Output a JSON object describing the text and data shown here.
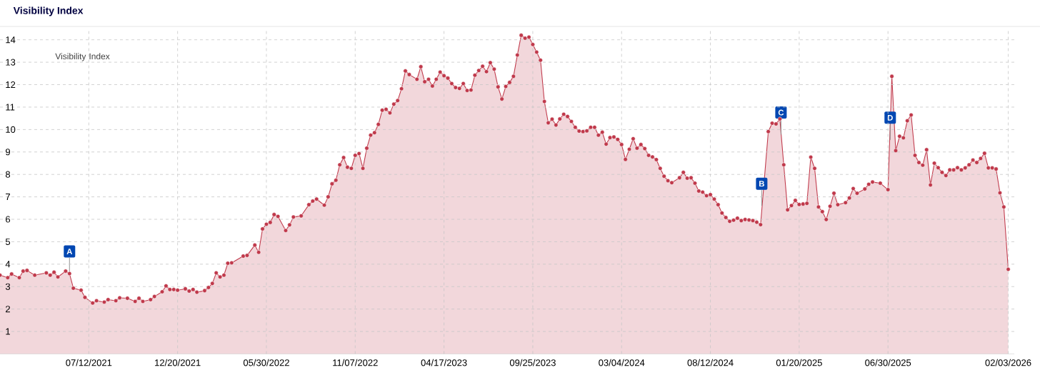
{
  "chart_data": {
    "type": "area",
    "title": "Visibility Index",
    "legend_title": "Visibility Index",
    "grid": true,
    "marker": "circle",
    "xlim": [
      "2021-02-01",
      "2026-02-14"
    ],
    "xticks": [
      {
        "value": "2021-07-12",
        "label": "07/12/2021"
      },
      {
        "value": "2021-12-20",
        "label": "12/20/2021"
      },
      {
        "value": "2022-05-30",
        "label": "05/30/2022"
      },
      {
        "value": "2022-11-07",
        "label": "11/07/2022"
      },
      {
        "value": "2023-04-17",
        "label": "04/17/2023"
      },
      {
        "value": "2023-09-25",
        "label": "09/25/2023"
      },
      {
        "value": "2024-03-04",
        "label": "03/04/2024"
      },
      {
        "value": "2024-08-12",
        "label": "08/12/2024"
      },
      {
        "value": "2025-01-20",
        "label": "01/20/2025"
      },
      {
        "value": "2025-06-30",
        "label": "06/30/2025"
      },
      {
        "value": "2026-02-03",
        "label": "02/03/2026"
      }
    ],
    "ylim": [
      0,
      14.5
    ],
    "yticks": [
      1,
      2,
      3,
      4,
      5,
      6,
      7,
      8,
      9,
      10,
      11,
      12,
      13,
      14
    ],
    "annotations": [
      {
        "text": "A",
        "x": "2021-06-07",
        "y": 3.58
      },
      {
        "text": "B",
        "x": "2024-11-13",
        "y": 6.6
      },
      {
        "text": "C",
        "x": "2024-12-18",
        "y": 9.77
      },
      {
        "text": "D",
        "x": "2025-07-04",
        "y": 9.54
      }
    ],
    "series": [
      {
        "color": "#c0394b",
        "x": [
          "2021-02-01",
          "2021-02-15",
          "2021-02-22",
          "2021-03-08",
          "2021-03-15",
          "2021-03-22",
          "2021-04-05",
          "2021-04-26",
          "2021-05-03",
          "2021-05-10",
          "2021-05-17",
          "2021-05-31",
          "2021-06-07",
          "2021-06-14",
          "2021-06-28",
          "2021-07-05",
          "2021-07-19",
          "2021-07-26",
          "2021-08-09",
          "2021-08-16",
          "2021-08-30",
          "2021-09-06",
          "2021-09-20",
          "2021-10-04",
          "2021-10-11",
          "2021-10-18",
          "2021-11-01",
          "2021-11-08",
          "2021-11-22",
          "2021-11-29",
          "2021-12-06",
          "2021-12-13",
          "2021-12-20",
          "2022-01-03",
          "2022-01-10",
          "2022-01-17",
          "2022-01-24",
          "2022-02-07",
          "2022-02-14",
          "2022-02-21",
          "2022-02-28",
          "2022-03-07",
          "2022-03-14",
          "2022-03-21",
          "2022-03-28",
          "2022-04-18",
          "2022-04-25",
          "2022-05-09",
          "2022-05-16",
          "2022-05-23",
          "2022-05-30",
          "2022-06-06",
          "2022-06-13",
          "2022-06-20",
          "2022-07-04",
          "2022-07-11",
          "2022-07-18",
          "2022-08-01",
          "2022-08-15",
          "2022-08-22",
          "2022-08-29",
          "2022-09-12",
          "2022-09-19",
          "2022-09-26",
          "2022-10-03",
          "2022-10-10",
          "2022-10-17",
          "2022-10-24",
          "2022-10-31",
          "2022-11-07",
          "2022-11-14",
          "2022-11-21",
          "2022-11-28",
          "2022-12-05",
          "2022-12-12",
          "2022-12-19",
          "2022-12-26",
          "2023-01-02",
          "2023-01-09",
          "2023-01-16",
          "2023-01-23",
          "2023-01-30",
          "2023-02-06",
          "2023-02-13",
          "2023-02-27",
          "2023-03-06",
          "2023-03-13",
          "2023-03-20",
          "2023-03-27",
          "2023-04-03",
          "2023-04-10",
          "2023-04-17",
          "2023-04-24",
          "2023-05-01",
          "2023-05-08",
          "2023-05-15",
          "2023-05-22",
          "2023-05-29",
          "2023-06-05",
          "2023-06-12",
          "2023-06-19",
          "2023-06-26",
          "2023-07-03",
          "2023-07-10",
          "2023-07-17",
          "2023-07-24",
          "2023-07-31",
          "2023-08-07",
          "2023-08-14",
          "2023-08-21",
          "2023-08-28",
          "2023-09-04",
          "2023-09-11",
          "2023-09-18",
          "2023-09-25",
          "2023-10-02",
          "2023-10-09",
          "2023-10-16",
          "2023-10-23",
          "2023-10-30",
          "2023-11-06",
          "2023-11-13",
          "2023-11-20",
          "2023-11-27",
          "2023-12-04",
          "2023-12-11",
          "2023-12-18",
          "2023-12-25",
          "2024-01-01",
          "2024-01-08",
          "2024-01-15",
          "2024-01-22",
          "2024-01-29",
          "2024-02-05",
          "2024-02-12",
          "2024-02-19",
          "2024-02-26",
          "2024-03-04",
          "2024-03-11",
          "2024-03-18",
          "2024-03-25",
          "2024-04-01",
          "2024-04-08",
          "2024-04-15",
          "2024-04-22",
          "2024-04-29",
          "2024-05-06",
          "2024-05-13",
          "2024-05-20",
          "2024-05-27",
          "2024-06-03",
          "2024-06-17",
          "2024-06-24",
          "2024-07-01",
          "2024-07-08",
          "2024-07-15",
          "2024-07-22",
          "2024-07-29",
          "2024-08-05",
          "2024-08-12",
          "2024-08-19",
          "2024-08-26",
          "2024-09-02",
          "2024-09-09",
          "2024-09-16",
          "2024-09-23",
          "2024-09-30",
          "2024-10-07",
          "2024-10-14",
          "2024-10-21",
          "2024-10-28",
          "2024-11-04",
          "2024-11-11",
          "2024-11-18",
          "2024-11-25",
          "2024-12-02",
          "2024-12-09",
          "2024-12-16",
          "2024-12-23",
          "2024-12-30",
          "2025-01-06",
          "2025-01-13",
          "2025-01-20",
          "2025-01-27",
          "2025-02-03",
          "2025-02-10",
          "2025-02-17",
          "2025-02-24",
          "2025-03-03",
          "2025-03-10",
          "2025-03-17",
          "2025-03-24",
          "2025-03-31",
          "2025-04-14",
          "2025-04-21",
          "2025-04-28",
          "2025-05-05",
          "2025-05-19",
          "2025-05-26",
          "2025-06-02",
          "2025-06-16",
          "2025-06-30",
          "2025-07-07",
          "2025-07-14",
          "2025-07-21",
          "2025-07-28",
          "2025-08-04",
          "2025-08-11",
          "2025-08-18",
          "2025-08-25",
          "2025-09-01",
          "2025-09-08",
          "2025-09-15",
          "2025-09-22",
          "2025-09-29",
          "2025-10-06",
          "2025-10-13",
          "2025-10-20",
          "2025-10-27",
          "2025-11-03",
          "2025-11-10",
          "2025-11-17",
          "2025-11-24",
          "2025-12-01",
          "2025-12-08",
          "2025-12-15",
          "2025-12-22",
          "2025-12-29",
          "2026-01-05",
          "2026-01-12",
          "2026-01-19",
          "2026-01-26",
          "2026-02-03"
        ],
        "values": [
          3.51,
          3.4,
          3.56,
          3.4,
          3.69,
          3.72,
          3.51,
          3.61,
          3.51,
          3.64,
          3.43,
          3.69,
          3.58,
          2.93,
          2.84,
          2.52,
          2.27,
          2.37,
          2.31,
          2.42,
          2.37,
          2.5,
          2.48,
          2.34,
          2.48,
          2.34,
          2.42,
          2.56,
          2.77,
          3.03,
          2.87,
          2.87,
          2.84,
          2.9,
          2.8,
          2.87,
          2.75,
          2.82,
          2.96,
          3.14,
          3.61,
          3.43,
          3.51,
          4.04,
          4.06,
          4.36,
          4.39,
          4.85,
          4.53,
          5.57,
          5.78,
          5.86,
          6.21,
          6.13,
          5.5,
          5.75,
          6.1,
          6.15,
          6.65,
          6.81,
          6.9,
          6.63,
          7.0,
          7.58,
          7.74,
          8.43,
          8.75,
          8.32,
          8.27,
          8.85,
          8.93,
          8.27,
          9.17,
          9.75,
          9.86,
          10.23,
          10.86,
          10.9,
          10.74,
          11.13,
          11.29,
          11.82,
          12.61,
          12.45,
          12.24,
          12.8,
          12.13,
          12.24,
          11.94,
          12.24,
          12.56,
          12.4,
          12.29,
          12.05,
          11.87,
          11.83,
          12.05,
          11.74,
          11.76,
          12.42,
          12.63,
          12.82,
          12.58,
          12.98,
          12.69,
          11.9,
          11.36,
          11.92,
          12.1,
          12.37,
          13.32,
          14.2,
          14.07,
          14.12,
          13.79,
          13.45,
          13.09,
          11.25,
          10.3,
          10.46,
          10.2,
          10.47,
          10.68,
          10.58,
          10.36,
          10.1,
          9.93,
          9.91,
          9.94,
          10.1,
          10.1,
          9.75,
          9.88,
          9.35,
          9.64,
          9.67,
          9.56,
          9.33,
          8.67,
          9.12,
          9.59,
          9.17,
          9.33,
          9.15,
          8.85,
          8.78,
          8.66,
          8.27,
          7.92,
          7.72,
          7.63,
          7.85,
          8.09,
          7.83,
          7.85,
          7.61,
          7.26,
          7.21,
          7.05,
          7.1,
          6.9,
          6.65,
          6.28,
          6.08,
          5.91,
          5.96,
          6.05,
          5.94,
          5.99,
          5.97,
          5.94,
          5.87,
          5.76,
          null,
          9.91,
          10.28,
          10.25,
          10.47,
          8.43,
          6.42,
          6.61,
          6.84,
          6.66,
          6.68,
          6.71,
          8.77,
          8.27,
          6.55,
          6.34,
          5.99,
          6.58,
          7.16,
          6.65,
          6.74,
          6.95,
          7.37,
          7.16,
          7.35,
          7.56,
          7.66,
          7.61,
          7.32,
          12.37,
          9.06,
          9.7,
          9.63,
          10.39,
          10.65,
          8.85,
          8.53,
          8.41,
          9.1,
          7.53,
          8.5,
          8.3,
          8.09,
          7.95,
          8.2,
          8.2,
          8.3,
          8.2,
          8.29,
          8.43,
          8.64,
          8.53,
          8.71,
          8.94,
          8.29,
          8.29,
          8.24,
          7.18,
          6.55,
          3.77
        ]
      }
    ]
  }
}
